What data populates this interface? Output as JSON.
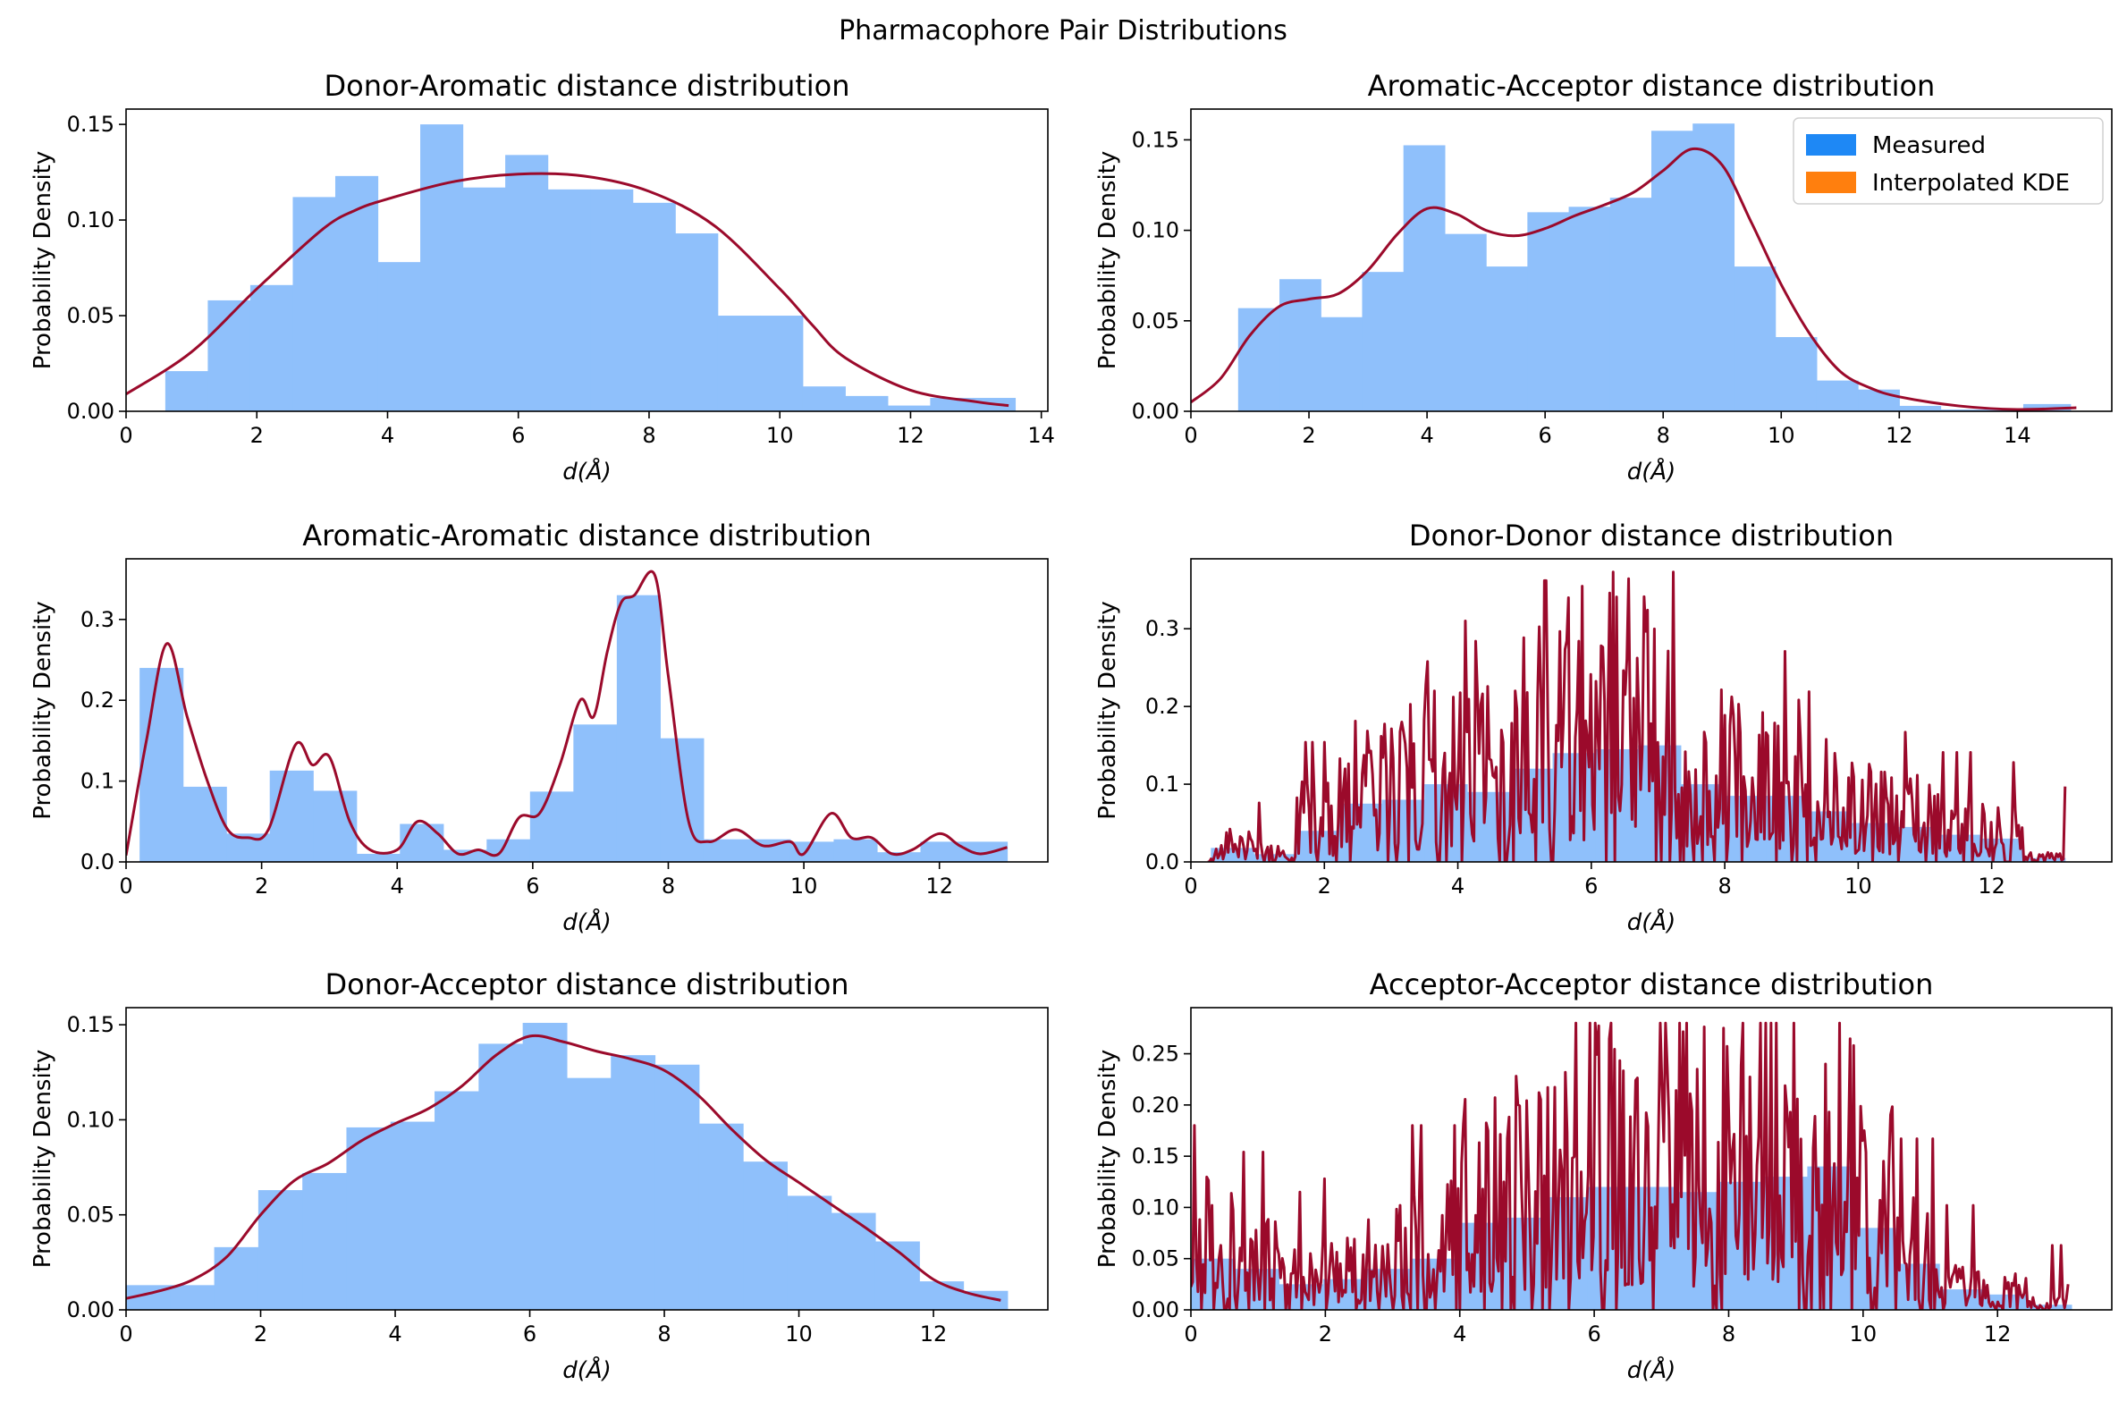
{
  "figure": {
    "suptitle": "Pharmacophore Pair Distributions",
    "hist_color": "#8fc0fb",
    "kde_color": "#9b0a2b",
    "legend_measured_color": "#1e88f5",
    "legend_kde_color": "#ff7f0e",
    "legend": {
      "items": [
        "Measured",
        "Interpolated KDE"
      ],
      "placement": "upper right of Aromatic-Acceptor panel"
    }
  },
  "chart_data": [
    {
      "type": "bar",
      "title": "Donor-Aromatic distance distribution",
      "xlabel": "d(Å)",
      "ylabel": "Probability Density",
      "xlim": [
        0,
        14.1
      ],
      "ylim": [
        0,
        0.158
      ],
      "xticks": [
        0,
        2,
        4,
        6,
        8,
        10,
        12,
        14
      ],
      "yticks": [
        0.0,
        0.05,
        0.1,
        0.15
      ],
      "ytick_labels": [
        "0.00",
        "0.05",
        "0.10",
        "0.15"
      ],
      "bin_edges": [
        0.6,
        1.25,
        1.9,
        2.55,
        3.2,
        3.85,
        4.5,
        5.15,
        5.8,
        6.45,
        7.1,
        7.75,
        8.4,
        9.05,
        9.7,
        10.35,
        11.0,
        11.65,
        12.3,
        12.95,
        13.6
      ],
      "values": [
        0.021,
        0.058,
        0.066,
        0.112,
        0.123,
        0.078,
        0.15,
        0.117,
        0.134,
        0.116,
        0.116,
        0.109,
        0.093,
        0.05,
        0.05,
        0.013,
        0.008,
        0.003,
        0.007,
        0.007
      ],
      "kde": {
        "x": [
          0,
          1,
          2,
          3,
          3.5,
          4,
          5,
          6,
          7,
          8,
          9,
          10,
          10.5,
          11,
          12,
          13,
          13.5
        ],
        "y": [
          0.009,
          0.031,
          0.064,
          0.095,
          0.105,
          0.111,
          0.12,
          0.124,
          0.123,
          0.115,
          0.097,
          0.064,
          0.045,
          0.028,
          0.011,
          0.005,
          0.003
        ]
      },
      "legend": false
    },
    {
      "type": "bar",
      "title": "Aromatic-Acceptor distance distribution",
      "xlabel": "d(Å)",
      "ylabel": "Probability Density",
      "xlim": [
        0,
        15.6
      ],
      "ylim": [
        0,
        0.167
      ],
      "xticks": [
        0,
        2,
        4,
        6,
        8,
        10,
        12,
        14
      ],
      "yticks": [
        0.0,
        0.05,
        0.1,
        0.15
      ],
      "ytick_labels": [
        "0.00",
        "0.05",
        "0.10",
        "0.15"
      ],
      "bin_edges": [
        0.8,
        1.5,
        2.2,
        2.9,
        3.6,
        4.3,
        5.0,
        5.7,
        6.4,
        7.1,
        7.8,
        8.5,
        9.2,
        9.9,
        10.6,
        11.3,
        12.0,
        12.7,
        13.4,
        14.1,
        14.9
      ],
      "values": [
        0.057,
        0.073,
        0.052,
        0.077,
        0.147,
        0.098,
        0.08,
        0.11,
        0.113,
        0.118,
        0.155,
        0.159,
        0.08,
        0.041,
        0.017,
        0.012,
        0.003,
        0.001,
        0.001,
        0.004
      ],
      "kde": {
        "x": [
          0,
          0.5,
          1,
          1.5,
          2,
          2.5,
          3,
          3.5,
          4,
          4.5,
          5,
          5.5,
          6,
          6.5,
          7,
          7.5,
          8,
          8.5,
          9,
          9.5,
          10,
          10.5,
          11,
          11.5,
          12,
          13,
          14,
          15
        ],
        "y": [
          0.005,
          0.018,
          0.042,
          0.058,
          0.062,
          0.065,
          0.078,
          0.098,
          0.112,
          0.109,
          0.1,
          0.097,
          0.101,
          0.108,
          0.114,
          0.121,
          0.133,
          0.145,
          0.136,
          0.104,
          0.07,
          0.042,
          0.022,
          0.013,
          0.008,
          0.003,
          0.001,
          0.002
        ]
      },
      "legend": true
    },
    {
      "type": "bar",
      "title": "Aromatic-Aromatic distance distribution",
      "xlabel": "d(Å)",
      "ylabel": "Probability Density",
      "xlim": [
        0,
        13.6
      ],
      "ylim": [
        0,
        0.375
      ],
      "xticks": [
        0,
        2,
        4,
        6,
        8,
        10,
        12
      ],
      "yticks": [
        0.0,
        0.1,
        0.2,
        0.3
      ],
      "ytick_labels": [
        "0.0",
        "0.1",
        "0.2",
        "0.3"
      ],
      "bin_edges": [
        0.2,
        0.84,
        1.48,
        2.12,
        2.76,
        3.4,
        4.04,
        4.68,
        5.32,
        5.96,
        6.6,
        7.24,
        7.88,
        8.52,
        9.16,
        9.8,
        10.44,
        11.08,
        11.72,
        12.36,
        13.0
      ],
      "values": [
        0.24,
        0.093,
        0.035,
        0.113,
        0.088,
        0.01,
        0.047,
        0.015,
        0.028,
        0.087,
        0.17,
        0.33,
        0.153,
        0.028,
        0.028,
        0.025,
        0.028,
        0.012,
        0.025,
        0.025
      ],
      "kde": {
        "x": [
          0,
          0.3,
          0.6,
          0.9,
          1.2,
          1.5,
          1.8,
          2.1,
          2.5,
          2.75,
          3.0,
          3.3,
          3.6,
          4.0,
          4.3,
          4.6,
          4.9,
          5.2,
          5.5,
          5.8,
          6.1,
          6.4,
          6.7,
          6.9,
          7.1,
          7.3,
          7.5,
          7.8,
          8.0,
          8.3,
          8.6,
          9.0,
          9.4,
          9.8,
          10.0,
          10.4,
          10.7,
          11.0,
          11.3,
          11.6,
          12.0,
          12.3,
          12.6,
          13.0
        ],
        "y": [
          0.008,
          0.15,
          0.27,
          0.18,
          0.1,
          0.04,
          0.03,
          0.04,
          0.145,
          0.12,
          0.13,
          0.05,
          0.015,
          0.015,
          0.05,
          0.035,
          0.01,
          0.015,
          0.01,
          0.055,
          0.06,
          0.12,
          0.2,
          0.18,
          0.26,
          0.32,
          0.33,
          0.355,
          0.23,
          0.05,
          0.025,
          0.04,
          0.02,
          0.025,
          0.01,
          0.06,
          0.03,
          0.03,
          0.01,
          0.015,
          0.035,
          0.02,
          0.01,
          0.018
        ]
      },
      "legend": false
    },
    {
      "type": "bar",
      "title": "Donor-Donor distance distribution",
      "xlabel": "d(Å)",
      "ylabel": "Probability Density",
      "xlim": [
        0,
        13.8
      ],
      "ylim": [
        0,
        0.39
      ],
      "xticks": [
        0,
        2,
        4,
        6,
        8,
        10,
        12
      ],
      "yticks": [
        0.0,
        0.1,
        0.2,
        0.3
      ],
      "ytick_labels": [
        "0.0",
        "0.1",
        "0.2",
        "0.3"
      ],
      "bin_edges": [
        0.3,
        0.94,
        1.58,
        2.22,
        2.86,
        3.5,
        4.14,
        4.78,
        5.42,
        6.06,
        6.7,
        7.34,
        7.98,
        8.62,
        9.26,
        9.9,
        10.54,
        11.18,
        11.82,
        12.46,
        13.1
      ],
      "values": [
        0.018,
        0.01,
        0.04,
        0.075,
        0.08,
        0.1,
        0.09,
        0.12,
        0.14,
        0.145,
        0.15,
        0.1,
        0.085,
        0.085,
        0.065,
        0.05,
        0.045,
        0.035,
        0.03,
        0.005
      ],
      "kde": {
        "x_range": [
          0.25,
          13.1
        ],
        "n_points": 500,
        "noisy": true,
        "peak": 0.373,
        "final_spike": 0.097
      },
      "legend": false
    },
    {
      "type": "bar",
      "title": "Donor-Acceptor distance distribution",
      "xlabel": "d(Å)",
      "ylabel": "Probability Density",
      "xlim": [
        0,
        13.7
      ],
      "ylim": [
        0,
        0.159
      ],
      "xticks": [
        0,
        2,
        4,
        6,
        8,
        10,
        12
      ],
      "yticks": [
        0.0,
        0.05,
        0.1,
        0.15
      ],
      "ytick_labels": [
        "0.00",
        "0.05",
        "0.10",
        "0.15"
      ],
      "bin_edges": [
        0,
        0.655,
        1.31,
        1.965,
        2.62,
        3.275,
        3.93,
        4.585,
        5.24,
        5.895,
        6.55,
        7.205,
        7.86,
        8.515,
        9.17,
        9.825,
        10.48,
        11.135,
        11.79,
        12.445,
        13.1
      ],
      "values": [
        0.013,
        0.013,
        0.033,
        0.063,
        0.072,
        0.096,
        0.099,
        0.115,
        0.14,
        0.151,
        0.122,
        0.134,
        0.129,
        0.098,
        0.078,
        0.06,
        0.051,
        0.036,
        0.015,
        0.01
      ],
      "kde": {
        "x": [
          0,
          0.5,
          1,
          1.5,
          2,
          2.5,
          3,
          3.5,
          4,
          4.5,
          5,
          5.5,
          6,
          6.5,
          7,
          7.5,
          8,
          8.5,
          9,
          9.5,
          10,
          10.5,
          11,
          11.5,
          12,
          12.5,
          13
        ],
        "y": [
          0.006,
          0.01,
          0.016,
          0.028,
          0.05,
          0.068,
          0.077,
          0.089,
          0.098,
          0.106,
          0.118,
          0.134,
          0.144,
          0.141,
          0.136,
          0.132,
          0.126,
          0.113,
          0.095,
          0.079,
          0.067,
          0.055,
          0.043,
          0.03,
          0.016,
          0.009,
          0.005
        ]
      },
      "legend": false
    },
    {
      "type": "bar",
      "title": "Acceptor-Acceptor distance distribution",
      "xlabel": "d(Å)",
      "ylabel": "Probability Density",
      "xlim": [
        0,
        13.7
      ],
      "ylim": [
        0,
        0.295
      ],
      "xticks": [
        0,
        2,
        4,
        6,
        8,
        10,
        12
      ],
      "yticks": [
        0.0,
        0.05,
        0.1,
        0.15,
        0.2,
        0.25
      ],
      "ytick_labels": [
        "0.00",
        "0.05",
        "0.10",
        "0.15",
        "0.20",
        "0.25"
      ],
      "bin_edges": [
        0,
        0.655,
        1.31,
        1.965,
        2.62,
        3.275,
        3.93,
        4.585,
        5.24,
        5.895,
        6.55,
        7.205,
        7.86,
        8.515,
        9.17,
        9.825,
        10.48,
        11.135,
        11.79,
        12.445,
        13.1
      ],
      "values": [
        0.05,
        0.04,
        0.025,
        0.03,
        0.04,
        0.05,
        0.085,
        0.09,
        0.11,
        0.12,
        0.12,
        0.115,
        0.125,
        0.13,
        0.14,
        0.08,
        0.045,
        0.02,
        0.015,
        0.005
      ],
      "kde": {
        "x_range": [
          0,
          13.05
        ],
        "n_points": 500,
        "noisy": true,
        "peak": 0.28,
        "final_spike": 0.025
      },
      "legend": false
    }
  ]
}
